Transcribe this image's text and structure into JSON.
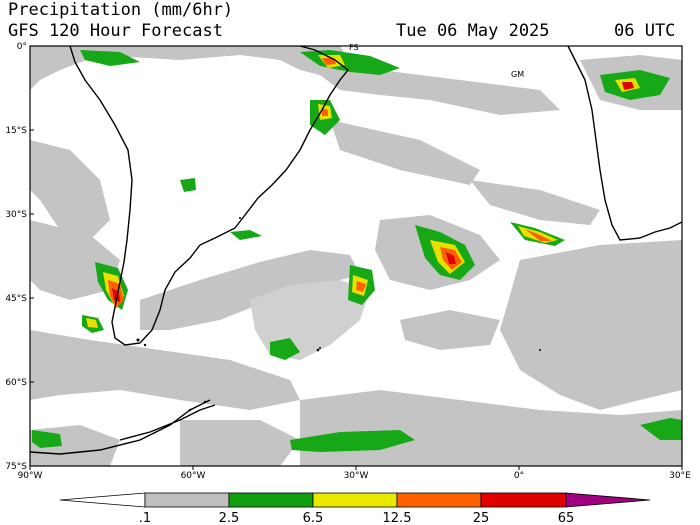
{
  "header": {
    "title": "Precipitation (mm/6hr)",
    "subtitle": "GFS 120 Hour Forecast",
    "date": "Tue 06 May 2025",
    "time": "06 UTC"
  },
  "axes": {
    "lat_labels": [
      "0°",
      "15°S",
      "30°S",
      "45°S",
      "60°S",
      "75°S"
    ],
    "lon_labels": [
      "90°W",
      "60°W",
      "30°W",
      "0°",
      "30°E"
    ]
  },
  "map_labels": [
    "FS",
    "GM"
  ],
  "legend": {
    "ticks": [
      ".1",
      "2.5",
      "6.5",
      "12.5",
      "25",
      "65"
    ],
    "colors": [
      "#ffffff",
      "#c0c0c0",
      "#10a010",
      "#e8e800",
      "#ff6000",
      "#e00000",
      "#a00080"
    ]
  }
}
